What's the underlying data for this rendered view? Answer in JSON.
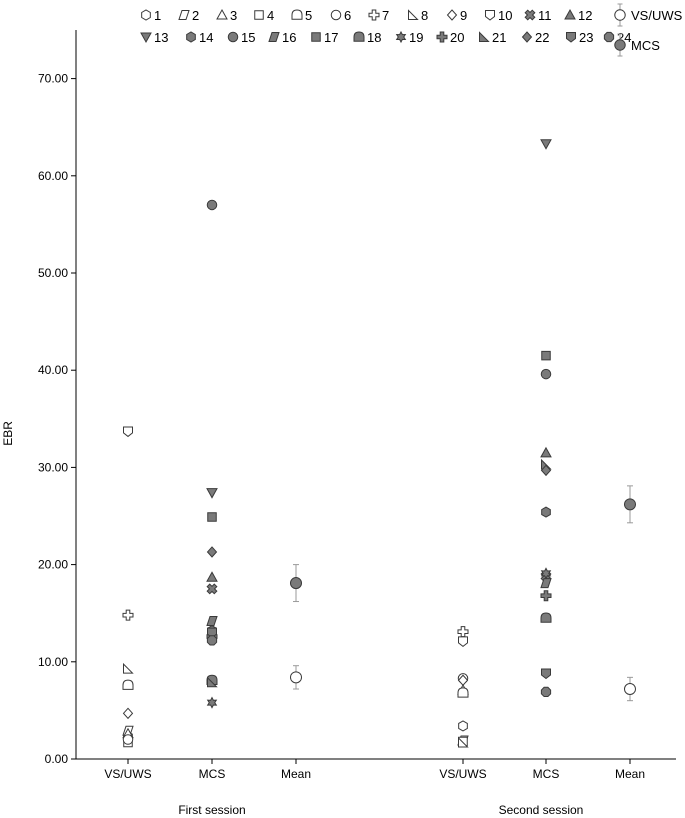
{
  "chart_data": {
    "type": "scatter",
    "ylabel": "EBR",
    "ylim": [
      0,
      75
    ],
    "yticks": [
      0,
      10,
      20,
      30,
      40,
      50,
      60,
      70
    ],
    "ytick_labels": [
      "0.00",
      "10.00",
      "20.00",
      "30.00",
      "40.00",
      "50.00",
      "60.00",
      "70.00"
    ],
    "groups": [
      {
        "label": "First session",
        "columns": [
          "VS/UWS",
          "MCS",
          "Mean"
        ]
      },
      {
        "label": "Second session",
        "columns": [
          "VS/UWS",
          "MCS",
          "Mean"
        ]
      }
    ],
    "patients": [
      {
        "id": "1",
        "group": "VS/UWS",
        "shape": "hexagon-open",
        "s1": 2.3,
        "s2": 3.4
      },
      {
        "id": "2",
        "group": "VS/UWS",
        "shape": "parallelogram-open",
        "s1": 2.9,
        "s2": 1.9
      },
      {
        "id": "3",
        "group": "VS/UWS",
        "shape": "triangle-open",
        "s1": 2.6,
        "s2": 7.1
      },
      {
        "id": "4",
        "group": "VS/UWS",
        "shape": "square-open",
        "s1": 1.7,
        "s2": 1.8
      },
      {
        "id": "5",
        "group": "VS/UWS",
        "shape": "arch-open",
        "s1": 7.6,
        "s2": 6.8
      },
      {
        "id": "6",
        "group": "VS/UWS",
        "shape": "circle-open",
        "s1": 2.0,
        "s2": 8.3
      },
      {
        "id": "7",
        "group": "VS/UWS",
        "shape": "cross-open",
        "s1": 14.8,
        "s2": 13.1
      },
      {
        "id": "8",
        "group": "VS/UWS",
        "shape": "right-triangle-open",
        "s1": 9.3,
        "s2": 1.7
      },
      {
        "id": "9",
        "group": "VS/UWS",
        "shape": "diamond-open",
        "s1": 4.7,
        "s2": 8.1
      },
      {
        "id": "10",
        "group": "VS/UWS",
        "shape": "shield-open",
        "s1": 33.7,
        "s2": 12.1
      },
      {
        "id": "11",
        "group": "MCS",
        "shape": "x-filled",
        "s1": 17.5,
        "s2": 18.8
      },
      {
        "id": "12",
        "group": "MCS",
        "shape": "triangle-filled",
        "s1": 18.7,
        "s2": 31.5
      },
      {
        "id": "13",
        "group": "MCS",
        "shape": "triangle-down-filled",
        "s1": 27.4,
        "s2": 63.3
      },
      {
        "id": "14",
        "group": "MCS",
        "shape": "hexagon-filled",
        "s1": 13.2,
        "s2": 25.4
      },
      {
        "id": "15",
        "group": "MCS",
        "shape": "circle-filled",
        "s1": 57.0,
        "s2": 39.6
      },
      {
        "id": "16",
        "group": "MCS",
        "shape": "parallelogram-filled",
        "s1": 14.2,
        "s2": 18.1
      },
      {
        "id": "17",
        "group": "MCS",
        "shape": "square-filled",
        "s1": 24.9,
        "s2": 41.5
      },
      {
        "id": "18",
        "group": "MCS",
        "shape": "arch-filled",
        "s1": 8.1,
        "s2": 14.5
      },
      {
        "id": "19",
        "group": "MCS",
        "shape": "star-filled",
        "s1": 5.8,
        "s2": 19.1
      },
      {
        "id": "20",
        "group": "MCS",
        "shape": "cross-filled",
        "s1": 12.6,
        "s2": 16.8
      },
      {
        "id": "21",
        "group": "MCS",
        "shape": "right-triangle-filled",
        "s1": 7.9,
        "s2": 30.3
      },
      {
        "id": "22",
        "group": "MCS",
        "shape": "diamond-filled",
        "s1": 21.3,
        "s2": 29.7
      },
      {
        "id": "23",
        "group": "MCS",
        "shape": "shield-filled",
        "s1": 13.0,
        "s2": 8.8
      },
      {
        "id": "24",
        "group": "MCS",
        "shape": "octagon-filled",
        "s1": 12.2,
        "s2": 6.9
      }
    ],
    "means": [
      {
        "group": "VS/UWS",
        "session": 1,
        "mean": 8.4,
        "err_low": 7.2,
        "err_high": 9.6
      },
      {
        "group": "MCS",
        "session": 1,
        "mean": 18.1,
        "err_low": 16.2,
        "err_high": 20.0
      },
      {
        "group": "VS/UWS",
        "session": 2,
        "mean": 7.2,
        "err_low": 6.0,
        "err_high": 8.4
      },
      {
        "group": "MCS",
        "session": 2,
        "mean": 26.2,
        "err_low": 24.3,
        "err_high": 28.1
      }
    ],
    "legend_mean": [
      {
        "label": "VS/UWS",
        "style": "circle-open"
      },
      {
        "label": "MCS",
        "style": "circle-filled"
      }
    ],
    "colors": {
      "open_fill": "#ffffff",
      "filled": "#7a7a7a",
      "stroke": "#3a3a3a",
      "errorbar": "#9a9a9a"
    }
  }
}
